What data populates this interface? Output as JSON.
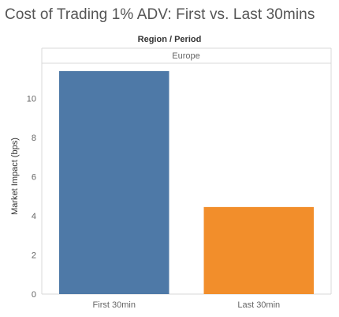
{
  "chart_data": {
    "type": "bar",
    "title": "Cost of Trading 1% ADV: First vs. Last 30mins",
    "header_label": "Region / Period",
    "facet": "Europe",
    "categories": [
      "First 30min",
      "Last 30min"
    ],
    "values": [
      11.4,
      4.45
    ],
    "colors": [
      "#4e79a7",
      "#f28e2b"
    ],
    "ylabel": "Market Impact (bps)",
    "xlabel": "",
    "ylim": [
      0,
      11.8
    ],
    "yticks": [
      0,
      2,
      4,
      6,
      8,
      10
    ],
    "grid": false,
    "legend": "none"
  }
}
